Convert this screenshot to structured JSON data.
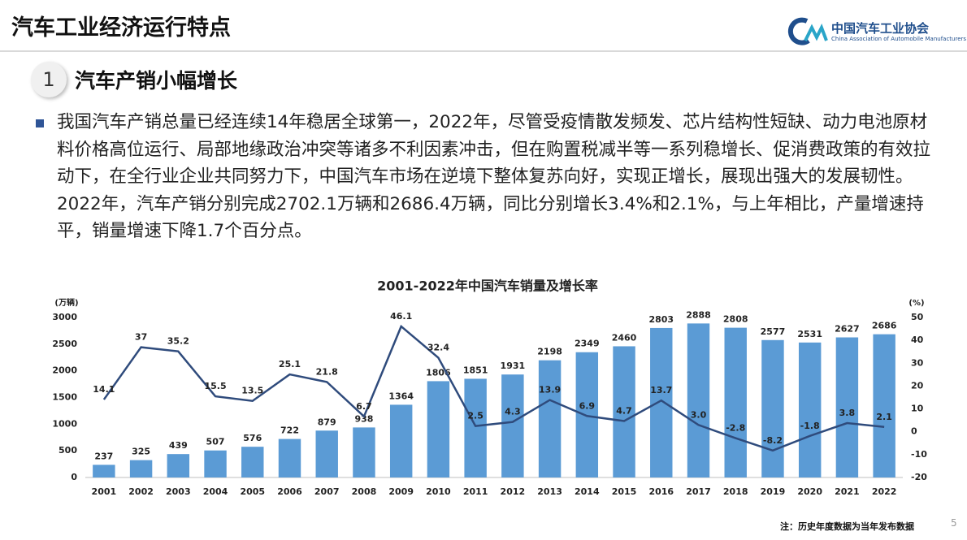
{
  "header": {
    "title": "汽车工业经济运行特点",
    "logo_cn": "中国汽车工业协会",
    "logo_en": "China Association of Automobile Manufacturers"
  },
  "section": {
    "number": "1",
    "title": "汽车产销小幅增长"
  },
  "paragraph": "我国汽车产销总量已经连续14年稳居全球第一，2022年，尽管受疫情散发频发、芯片结构性短缺、动力电池原材料价格高位运行、局部地缘政治冲突等诸多不利因素冲击，但在购置税减半等一系列稳增长、促消费政策的有效拉动下，在全行业企业共同努力下，中国汽车市场在逆境下整体复苏向好，实现正增长，展现出强大的发展韧性。2022年，汽车产销分别完成2702.1万辆和2686.4万辆，同比分别增长3.4%和2.1%，与上年相比，产量增速持平，销量增速下降1.7个百分点。",
  "footnote": "注：历史年度数据为当年发布数据",
  "page_number": "5",
  "chart_data": {
    "type": "bar_line",
    "title": "2001-2022年中国汽车销量及增长率",
    "y_label": "(万辆)",
    "y2_label": "(%)",
    "categories": [
      "2001",
      "2002",
      "2003",
      "2004",
      "2005",
      "2006",
      "2007",
      "2008",
      "2009",
      "2010",
      "2011",
      "2012",
      "2013",
      "2014",
      "2015",
      "2016",
      "2017",
      "2018",
      "2019",
      "2020",
      "2021",
      "2022"
    ],
    "series": [
      {
        "type": "bar",
        "color": "#5b9bd5",
        "values": [
          237,
          325,
          439,
          507,
          576,
          722,
          879,
          938,
          1364,
          1806,
          1851,
          1931,
          2198,
          2349,
          2460,
          2803,
          2888,
          2808,
          2577,
          2531,
          2627,
          2686
        ]
      },
      {
        "type": "line",
        "axis": "y2",
        "color": "#2f4b7c",
        "values": [
          14.1,
          37,
          35.2,
          15.5,
          13.5,
          25.1,
          21.8,
          6.7,
          46.1,
          32.4,
          2.5,
          4.3,
          13.9,
          6.9,
          4.7,
          13.7,
          3.0,
          -2.8,
          -8.2,
          -1.8,
          3.8,
          2.1
        ],
        "value_labels": [
          "14.1",
          "37",
          "35.2",
          "15.5",
          "13.5",
          "25.1",
          "21.8",
          "6.7",
          "46.1",
          "32.4",
          "2.5",
          "4.3",
          "13.9",
          "6.9",
          "4.7",
          "13.7",
          "3.0",
          "-2.8",
          "-8.2",
          "-1.8",
          "3.8",
          "2.1"
        ]
      }
    ],
    "ylim": [
      0,
      3000
    ],
    "yticks": [
      0,
      500,
      1000,
      1500,
      2000,
      2500,
      3000
    ],
    "y2lim": [
      -20,
      50
    ],
    "y2ticks": [
      -20,
      -10,
      0,
      10,
      20,
      30,
      40,
      50
    ]
  }
}
